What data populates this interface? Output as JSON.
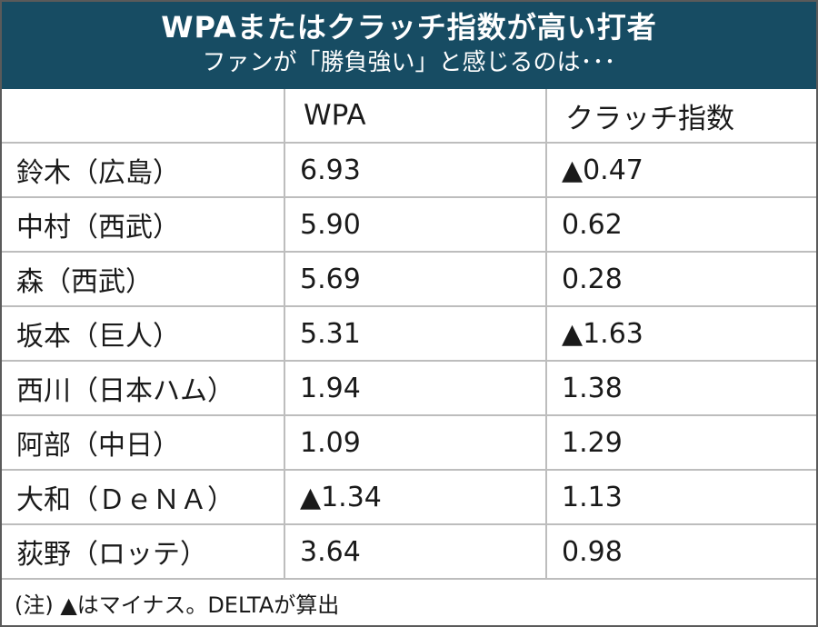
{
  "header": {
    "title": "WPAまたはクラッチ指数が高い打者",
    "subtitle": "ファンが「勝負強い」と感じるのは･･･"
  },
  "columns": {
    "player": "",
    "wpa": "WPA",
    "clutch": "クラッチ指数"
  },
  "rows": [
    {
      "player": "鈴木（広島）",
      "wpa": "6.93",
      "clutch": "▲0.47"
    },
    {
      "player": "中村（西武）",
      "wpa": "5.90",
      "clutch": "0.62"
    },
    {
      "player": "森（西武）",
      "wpa": "5.69",
      "clutch": "0.28"
    },
    {
      "player": "坂本（巨人）",
      "wpa": "5.31",
      "clutch": "▲1.63"
    },
    {
      "player": "西川（日本ハム）",
      "wpa": "1.94",
      "clutch": "1.38"
    },
    {
      "player": "阿部（中日）",
      "wpa": "1.09",
      "clutch": "1.29"
    },
    {
      "player": "大和（ＤｅＮＡ）",
      "wpa": "▲1.34",
      "clutch": "1.13"
    },
    {
      "player": "荻野（ロッテ）",
      "wpa": "3.64",
      "clutch": "0.98"
    }
  ],
  "note": "(注) ▲はマイナス。DELTAが算出",
  "colors": {
    "header_bg": "#174c63",
    "header_text": "#ffffff",
    "grid": "#bdbdbd"
  },
  "chart_data": {
    "type": "table",
    "title": "WPAまたはクラッチ指数が高い打者",
    "subtitle": "ファンが「勝負強い」と感じるのは･･･",
    "columns": [
      "WPA",
      "クラッチ指数"
    ],
    "categories": [
      "鈴木（広島）",
      "中村（西武）",
      "森（西武）",
      "坂本（巨人）",
      "西川（日本ハム）",
      "阿部（中日）",
      "大和（ＤｅＮＡ）",
      "荻野（ロッテ）"
    ],
    "series": [
      {
        "name": "WPA",
        "values": [
          6.93,
          5.9,
          5.69,
          5.31,
          1.94,
          1.09,
          -1.34,
          3.64
        ]
      },
      {
        "name": "クラッチ指数",
        "values": [
          -0.47,
          0.62,
          0.28,
          -1.63,
          1.38,
          1.29,
          1.13,
          0.98
        ]
      }
    ],
    "annotations": [
      "(注) ▲はマイナス。DELTAが算出"
    ]
  }
}
